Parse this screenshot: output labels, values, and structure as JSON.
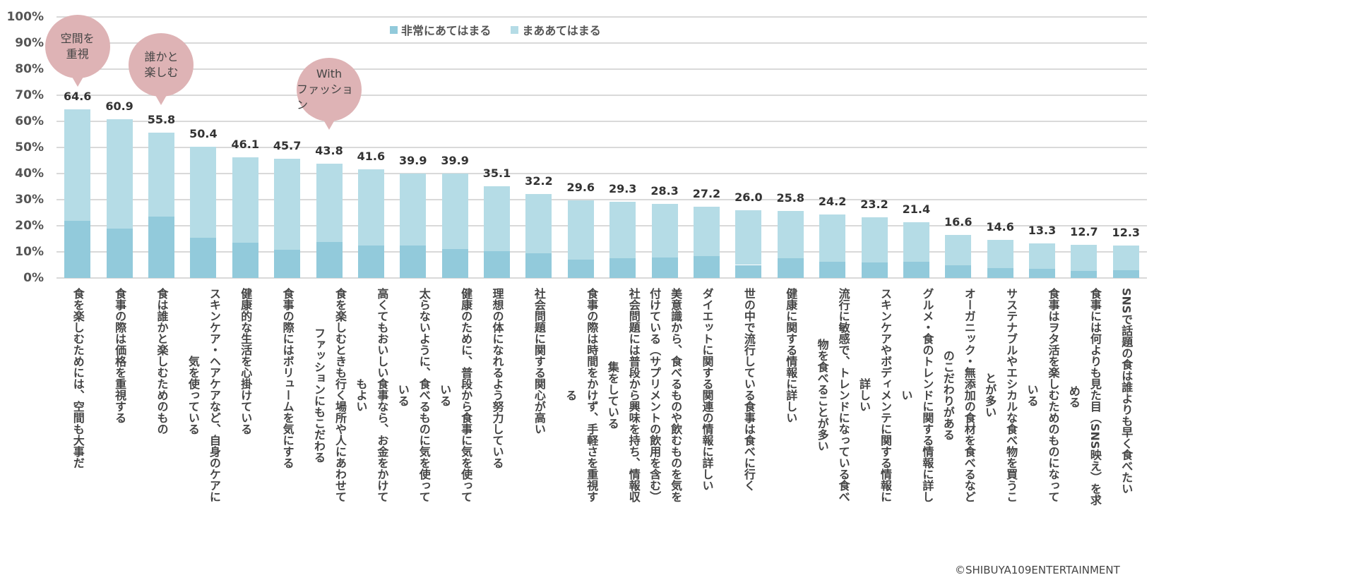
{
  "chart_data": {
    "type": "bar",
    "stacked": true,
    "title": "",
    "xlabel": "",
    "ylabel": "",
    "ylim": [
      0,
      100
    ],
    "yticks": [
      "0%",
      "10%",
      "20%",
      "30%",
      "40%",
      "50%",
      "60%",
      "70%",
      "80%",
      "90%",
      "100%"
    ],
    "grid": true,
    "legend_position": "top-center",
    "categories": [
      [
        "食を楽しむためには、空間も大事だ"
      ],
      [
        "食事の際は価格を重視する"
      ],
      [
        "食は誰かと楽しむためのもの"
      ],
      [
        "スキンケア・ヘアケアなど、自身のケアに",
        "気を使っている"
      ],
      [
        "健康的な生活を心掛けている"
      ],
      [
        "食事の際にはボリュームを気にする"
      ],
      [
        "食を楽しむときも行く場所や人にあわせて",
        "ファッションにもこだわる"
      ],
      [
        "高くてもおいしい食事なら、お金をかけて",
        "もよい"
      ],
      [
        "太らないように、食べるものに気を使って",
        "いる"
      ],
      [
        "健康のために、普段から食事に気を使って",
        "いる"
      ],
      [
        "理想の体になれるよう努力している"
      ],
      [
        "社会問題に関する関心が高い"
      ],
      [
        "食事の際は時間をかけず、手軽さを重視す",
        "る"
      ],
      [
        "社会問題には普段から興味を持ち、情報収",
        "集をしている"
      ],
      [
        "美意識から、食べるものや飲むものを気を",
        "付けている（サプリメントの飲用を含む）"
      ],
      [
        "ダイエットに関する関連の情報に詳しい"
      ],
      [
        "世の中で流行している食事は食べに行く"
      ],
      [
        "健康に関する情報に詳しい"
      ],
      [
        "流行に敏感で、トレンドになっている食べ",
        "物を食べることが多い"
      ],
      [
        "スキンケアやボディメンテに関する情報に",
        "詳しい"
      ],
      [
        "グルメ・食のトレンドに関する情報に詳し",
        "い"
      ],
      [
        "オーガニック・無添加の食材を食べるなど",
        "のこだわりがある"
      ],
      [
        "サステナブルやエシカルな食べ物を買うこ",
        "とが多い"
      ],
      [
        "食事はヲタ活を楽しむためのものになって",
        "いる"
      ],
      [
        "食事には何よりも見た目（SNS映え）を求",
        "める"
      ],
      [
        "SNSで話題の食は誰よりも早く食べたい"
      ]
    ],
    "totals": [
      "64.6",
      "60.9",
      "55.8",
      "50.4",
      "46.1",
      "45.7",
      "43.8",
      "41.6",
      "39.9",
      "39.9",
      "35.1",
      "32.2",
      "29.6",
      "29.3",
      "28.3",
      "27.2",
      "26.0",
      "25.8",
      "24.2",
      "23.2",
      "21.4",
      "16.6",
      "14.6",
      "13.3",
      "12.7",
      "12.3"
    ],
    "series": [
      {
        "name": "非常にあてはまる",
        "color": "#92cadb",
        "values": [
          21.9,
          18.9,
          23.5,
          15.5,
          13.5,
          10.8,
          13.7,
          12.4,
          12.4,
          11.1,
          10.4,
          9.4,
          7.1,
          7.5,
          7.9,
          8.5,
          5.0,
          7.5,
          6.2,
          5.9,
          6.2,
          4.8,
          3.8,
          3.5,
          2.8,
          3.1
        ]
      },
      {
        "name": "まああてはまる",
        "color": "#b5dce6",
        "values": [
          42.7,
          42.0,
          32.3,
          34.9,
          32.6,
          34.9,
          30.1,
          29.2,
          27.5,
          28.8,
          24.7,
          22.8,
          22.5,
          21.8,
          20.4,
          18.7,
          21.0,
          18.3,
          18.0,
          17.3,
          15.2,
          11.8,
          10.8,
          9.8,
          9.9,
          9.2
        ]
      }
    ],
    "annotations": [
      {
        "category_index": 0,
        "lines": [
          "空間を",
          "重視"
        ],
        "color": "#deb3b5"
      },
      {
        "category_index": 2,
        "lines": [
          "誰かと",
          "楽しむ"
        ],
        "color": "#deb3b5"
      },
      {
        "category_index": 6,
        "lines": [
          "With",
          "ファッション"
        ],
        "color": "#deb3b5"
      }
    ]
  },
  "copyright": "©SHIBUYA109ENTERTAINMENT"
}
